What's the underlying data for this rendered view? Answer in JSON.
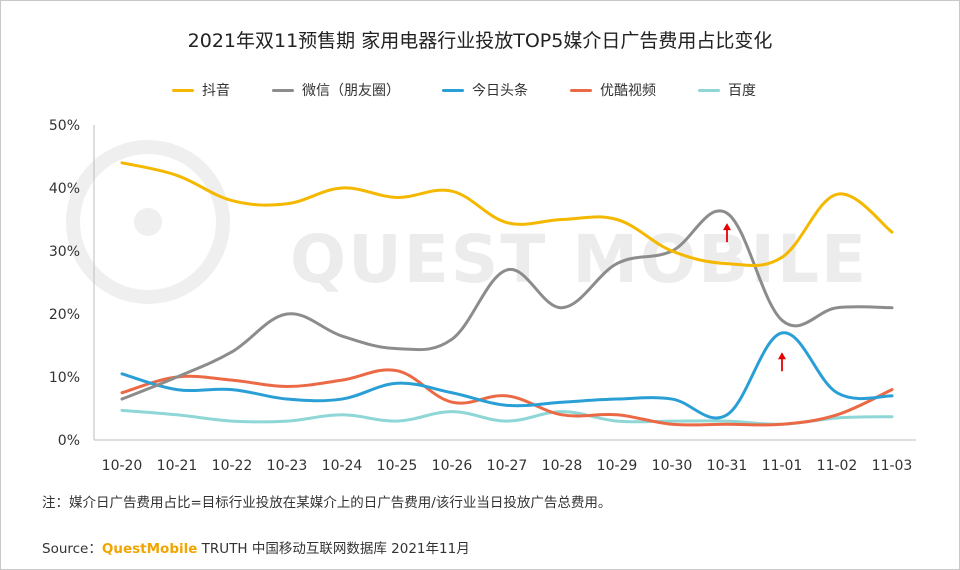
{
  "title": "2021年双11预售期 家用电器行业投放TOP5媒介日广告费用占比变化",
  "note": "注：媒介日广告费用占比=目标行业投放在某媒介上的日广告费用/该行业当日投放广告总费用。",
  "source": {
    "label": "Source：",
    "brand": "QuestMobile",
    "rest": " TRUTH 中国移动互联网数据库 2021年11月"
  },
  "watermark": "QUEST MOBILE",
  "chart_data": {
    "type": "line",
    "categories": [
      "10-20",
      "10-21",
      "10-22",
      "10-23",
      "10-24",
      "10-25",
      "10-26",
      "10-27",
      "10-28",
      "10-29",
      "10-30",
      "10-31",
      "11-01",
      "11-02",
      "11-03"
    ],
    "ylim": [
      0,
      50
    ],
    "yticks": [
      "0%",
      "10%",
      "20%",
      "30%",
      "40%",
      "50%"
    ],
    "grid": false,
    "legend_position": "top",
    "series": [
      {
        "name": "抖音",
        "color": "#f5b800",
        "values": [
          44,
          42,
          38,
          37.5,
          40,
          38.5,
          39.5,
          34.5,
          35,
          35,
          30,
          28,
          29,
          39,
          33
        ]
      },
      {
        "name": "微信（朋友圈）",
        "color": "#8c8c8c",
        "values": [
          6.5,
          10,
          14,
          20,
          16.5,
          14.5,
          16,
          27,
          21,
          28,
          30,
          36,
          19,
          21,
          21
        ]
      },
      {
        "name": "今日头条",
        "color": "#2a9fd6",
        "values": [
          10.5,
          8,
          8,
          6.5,
          6.5,
          9,
          7.5,
          5.5,
          6,
          6.5,
          6.5,
          4,
          17,
          7.5,
          7
        ]
      },
      {
        "name": "优酷视频",
        "color": "#eb6a45",
        "values": [
          7.5,
          10,
          9.5,
          8.5,
          9.5,
          11,
          6,
          7,
          4,
          4,
          2.5,
          2.5,
          2.5,
          4,
          8
        ]
      },
      {
        "name": "百度",
        "color": "#8fd6d6",
        "values": [
          4.7,
          4,
          3,
          3,
          4,
          3,
          4.5,
          3,
          4.5,
          3,
          3,
          3,
          2.5,
          3.5,
          3.7
        ]
      }
    ],
    "annotations": [
      {
        "type": "arrow-up",
        "category": "10-31",
        "value": 33,
        "color": "#e60000"
      },
      {
        "type": "arrow-up",
        "category": "11-01",
        "value": 12.5,
        "color": "#e60000"
      }
    ]
  }
}
